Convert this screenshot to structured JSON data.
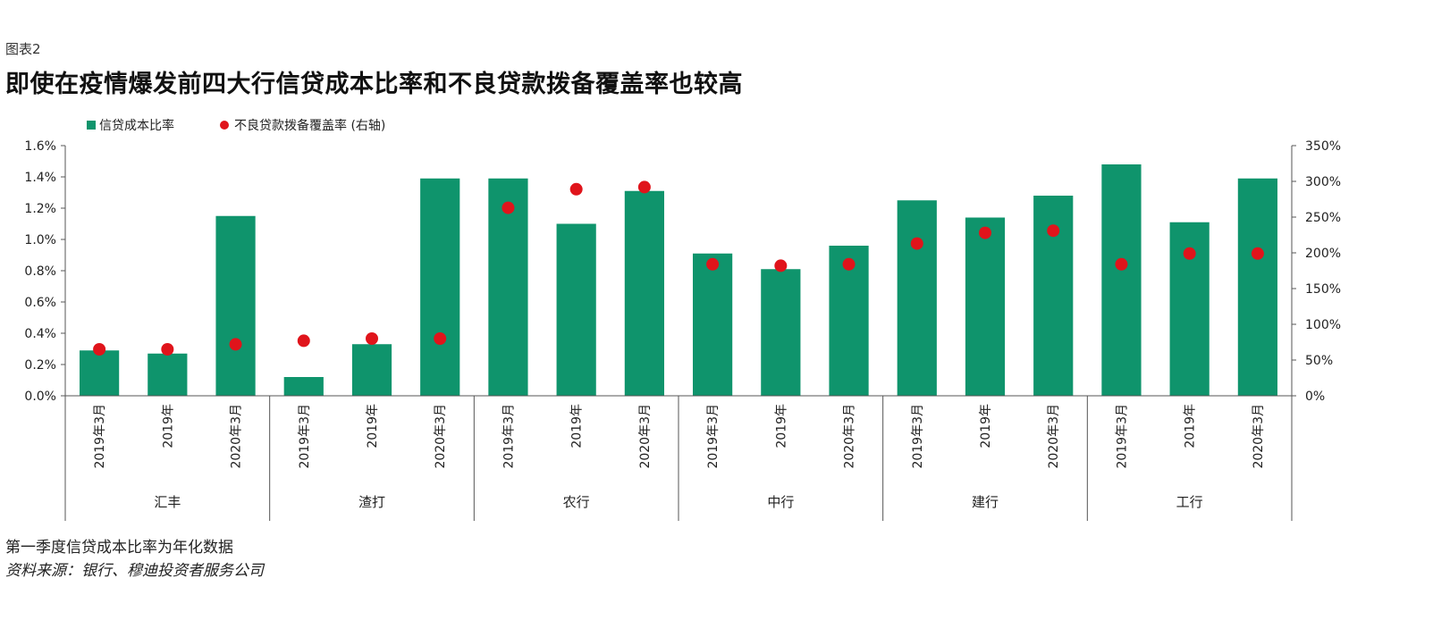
{
  "figure_label": "图表2",
  "title": "即使在疫情爆发前四大行信贷成本比率和不良贷款拨备覆盖率也较高",
  "note": "第一季度信贷成本比率为年化数据",
  "source": "资料来源：银行、穆迪投资者服务公司",
  "colors": {
    "bar": "#0f946c",
    "dot": "#e0141b",
    "axis": "#555555"
  },
  "chart_data": {
    "type": "bar",
    "title": "即使在疫情爆发前四大行信贷成本比率和不良贷款拨备覆盖率也较高",
    "legend_position": "top-left",
    "grid": false,
    "y_left": {
      "range": [
        0,
        1.6
      ],
      "ticks": [
        "0.0%",
        "0.2%",
        "0.4%",
        "0.6%",
        "0.8%",
        "1.0%",
        "1.2%",
        "1.4%",
        "1.6%"
      ]
    },
    "y_right": {
      "range": [
        0,
        350
      ],
      "ticks": [
        "0%",
        "50%",
        "100%",
        "150%",
        "200%",
        "250%",
        "300%",
        "350%"
      ]
    },
    "groups": [
      "汇丰",
      "渣打",
      "农行",
      "中行",
      "建行",
      "工行"
    ],
    "periods": [
      "2019年3月",
      "2019年",
      "2020年3月"
    ],
    "series": [
      {
        "name": "信贷成本比率",
        "type": "bar",
        "axis": "left",
        "values": [
          0.29,
          0.27,
          1.15,
          0.12,
          0.33,
          1.39,
          1.39,
          1.1,
          1.31,
          0.91,
          0.81,
          0.96,
          1.25,
          1.14,
          1.28,
          1.48,
          1.11,
          1.39
        ]
      },
      {
        "name": "不良贷款拨备覆盖率 (右轴)",
        "type": "scatter",
        "axis": "right",
        "values": [
          65,
          65,
          72,
          77,
          80,
          80,
          263,
          289,
          292,
          184,
          182,
          184,
          213,
          228,
          231,
          184,
          199,
          199
        ]
      }
    ]
  }
}
